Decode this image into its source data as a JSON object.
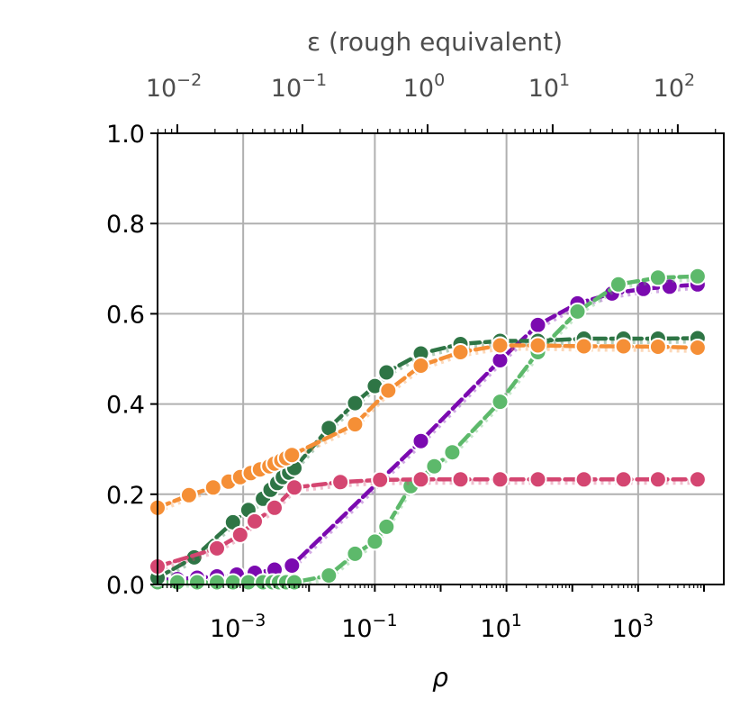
{
  "chart_data": {
    "type": "line",
    "xlabel": "ρ",
    "ylabel": "",
    "top_xlabel": "ε (rough equivalent)",
    "xscale": "log",
    "xlim": [
      5e-05,
      20000
    ],
    "ylim": [
      0,
      1.0
    ],
    "grid": true,
    "x_ticks": [
      {
        "base": "10",
        "exp": "−3",
        "value": 0.001
      },
      {
        "base": "10",
        "exp": "−1",
        "value": 0.1
      },
      {
        "base": "10",
        "exp": "1",
        "value": 10
      },
      {
        "base": "10",
        "exp": "3",
        "value": 1000
      }
    ],
    "y_ticks": [
      {
        "label": "0.0",
        "value": 0.0
      },
      {
        "label": "0.2",
        "value": 0.2
      },
      {
        "label": "0.4",
        "value": 0.4
      },
      {
        "label": "0.6",
        "value": 0.6
      },
      {
        "label": "0.8",
        "value": 0.8
      },
      {
        "label": "1.0",
        "value": 1.0
      }
    ],
    "top_ticks": [
      {
        "base": "10",
        "exp": "−2",
        "value": 0.01
      },
      {
        "base": "10",
        "exp": "−1",
        "value": 0.1
      },
      {
        "base": "10",
        "exp": "0",
        "value": 1
      },
      {
        "base": "10",
        "exp": "1",
        "value": 10
      },
      {
        "base": "10",
        "exp": "2",
        "value": 100
      }
    ],
    "top_axis_map": {
      "eps_lo": 0.01,
      "rho_at_eps_lo": 0.0001,
      "eps_hi": 100,
      "rho_at_eps_hi": 4000
    },
    "series": [
      {
        "color": "#7b0ab0",
        "x": [
          5e-05,
          0.0001,
          0.0002,
          0.0004,
          0.0008,
          0.0015,
          0.003,
          0.0055,
          0.5,
          8,
          30,
          120,
          400,
          1200,
          3000,
          8000
        ],
        "y": [
          0.01,
          0.012,
          0.015,
          0.018,
          0.022,
          0.026,
          0.033,
          0.042,
          0.318,
          0.497,
          0.575,
          0.623,
          0.645,
          0.655,
          0.66,
          0.665
        ]
      },
      {
        "color": "#5db96b",
        "x": [
          5e-05,
          0.0001,
          0.0002,
          0.0004,
          0.0007,
          0.0012,
          0.002,
          0.0028,
          0.0035,
          0.0045,
          0.006,
          0.02,
          0.05,
          0.1,
          0.15,
          0.35,
          0.8,
          1.5,
          8,
          30,
          120,
          500,
          2000,
          8000
        ],
        "y": [
          0.005,
          0.005,
          0.005,
          0.005,
          0.005,
          0.005,
          0.005,
          0.005,
          0.005,
          0.005,
          0.005,
          0.02,
          0.068,
          0.095,
          0.128,
          0.218,
          0.262,
          0.293,
          0.405,
          0.515,
          0.605,
          0.665,
          0.68,
          0.683
        ]
      },
      {
        "color": "#2e7545",
        "x": [
          5e-05,
          0.00018,
          0.0007,
          0.0012,
          0.002,
          0.0026,
          0.0033,
          0.004,
          0.005,
          0.006,
          0.02,
          0.05,
          0.1,
          0.15,
          0.5,
          2,
          8,
          30,
          150,
          600,
          2000,
          8000
        ],
        "y": [
          0.015,
          0.06,
          0.138,
          0.165,
          0.19,
          0.21,
          0.225,
          0.238,
          0.248,
          0.258,
          0.347,
          0.402,
          0.44,
          0.47,
          0.512,
          0.533,
          0.54,
          0.54,
          0.545,
          0.545,
          0.545,
          0.546
        ]
      },
      {
        "color": "#f58f36",
        "x": [
          5e-05,
          0.00015,
          0.00035,
          0.0006,
          0.0009,
          0.0013,
          0.0018,
          0.0025,
          0.003,
          0.0038,
          0.0045,
          0.0055,
          0.05,
          0.16,
          0.5,
          2,
          8,
          30,
          150,
          600,
          2000,
          8000
        ],
        "y": [
          0.17,
          0.198,
          0.215,
          0.228,
          0.238,
          0.247,
          0.255,
          0.262,
          0.268,
          0.275,
          0.28,
          0.287,
          0.355,
          0.43,
          0.485,
          0.515,
          0.53,
          0.53,
          0.528,
          0.528,
          0.527,
          0.525
        ]
      },
      {
        "color": "#d44671",
        "x": [
          5e-05,
          0.0004,
          0.0009,
          0.0015,
          0.003,
          0.006,
          0.03,
          0.12,
          0.5,
          2,
          8,
          30,
          150,
          600,
          2000,
          8000
        ],
        "y": [
          0.04,
          0.08,
          0.11,
          0.14,
          0.17,
          0.215,
          0.227,
          0.232,
          0.233,
          0.233,
          0.233,
          0.233,
          0.233,
          0.233,
          0.233,
          0.233
        ]
      }
    ]
  }
}
